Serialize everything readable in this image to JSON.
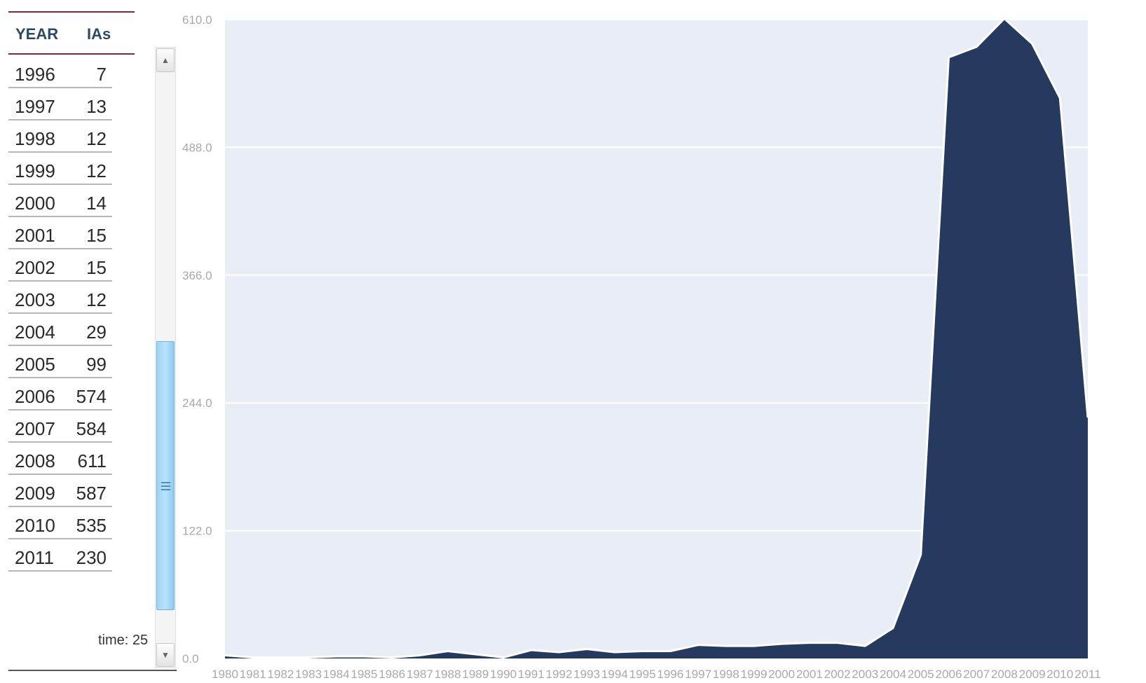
{
  "table": {
    "headers": {
      "year": "YEAR",
      "ias": "IAs"
    },
    "rows": [
      {
        "year": "1996",
        "ias": "7"
      },
      {
        "year": "1997",
        "ias": "13"
      },
      {
        "year": "1998",
        "ias": "12"
      },
      {
        "year": "1999",
        "ias": "12"
      },
      {
        "year": "2000",
        "ias": "14"
      },
      {
        "year": "2001",
        "ias": "15"
      },
      {
        "year": "2002",
        "ias": "15"
      },
      {
        "year": "2003",
        "ias": "12"
      },
      {
        "year": "2004",
        "ias": "29"
      },
      {
        "year": "2005",
        "ias": "99"
      },
      {
        "year": "2006",
        "ias": "574"
      },
      {
        "year": "2007",
        "ias": "584"
      },
      {
        "year": "2008",
        "ias": "611"
      },
      {
        "year": "2009",
        "ias": "587"
      },
      {
        "year": "2010",
        "ias": "535"
      },
      {
        "year": "2011",
        "ias": "230"
      }
    ]
  },
  "time_label": "time: 25",
  "scrollbar": {
    "thumb_start": 0.47,
    "thumb_size": 0.47
  },
  "colors": {
    "area_fill": "#253a5e",
    "plot_bg": "#e8edf6",
    "gridline": "#ffffff",
    "table_rule": "#7a2a3c",
    "header_text": "#2b4a66"
  },
  "chart_data": {
    "type": "area",
    "title": "",
    "xlabel": "",
    "ylabel": "",
    "x": [
      "1980",
      "1981",
      "1982",
      "1983",
      "1984",
      "1985",
      "1986",
      "1987",
      "1988",
      "1989",
      "1990",
      "1991",
      "1992",
      "1993",
      "1994",
      "1995",
      "1996",
      "1997",
      "1998",
      "1999",
      "2000",
      "2001",
      "2002",
      "2003",
      "2004",
      "2005",
      "2006",
      "2007",
      "2008",
      "2009",
      "2010",
      "2011"
    ],
    "series": [
      {
        "values": [
          3,
          1,
          1,
          1,
          2,
          2,
          1,
          3,
          7,
          4,
          1,
          8,
          6,
          9,
          6,
          7,
          7,
          13,
          12,
          12,
          14,
          15,
          15,
          12,
          29,
          99,
          574,
          584,
          611,
          587,
          535,
          230
        ]
      }
    ],
    "ylim": [
      0,
      610
    ],
    "yticks": [
      "0.0",
      "122.0",
      "244.0",
      "366.0",
      "488.0",
      "610.0"
    ],
    "grid": true,
    "legend": "none"
  }
}
